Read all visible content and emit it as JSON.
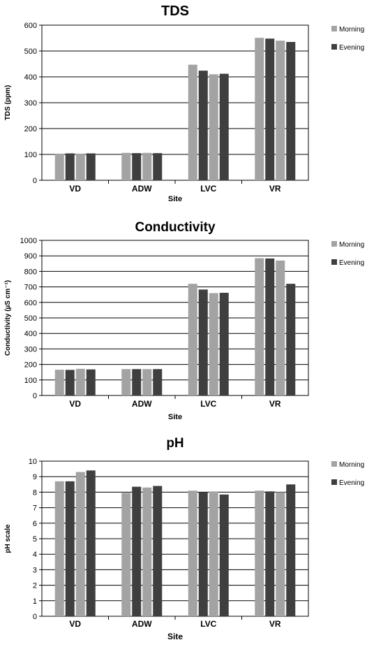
{
  "colors": {
    "morning": "#a3a3a3",
    "evening": "#3f3f3f",
    "axis": "#000000",
    "grid": "#000000",
    "text": "#000000"
  },
  "chart_data": [
    {
      "type": "bar",
      "title": "TDS",
      "xlabel": "Site",
      "ylabel": "TDS (ppm)",
      "ylim": [
        0,
        600
      ],
      "yticks": [
        "0",
        "100",
        "200",
        "300",
        "400",
        "500",
        "600"
      ],
      "grid": true,
      "legend": "right",
      "categories": [
        "VD",
        "ADW",
        "LVC",
        "VR"
      ],
      "series": [
        {
          "name": "Morning",
          "color_key": "morning"
        },
        {
          "name": "Evening",
          "color_key": "evening"
        }
      ],
      "bars": [
        [
          103,
          104,
          103,
          104
        ],
        [
          106,
          105,
          106,
          105
        ],
        [
          447,
          424,
          410,
          412
        ],
        [
          551,
          548,
          540,
          535
        ]
      ],
      "bar_series": [
        0,
        1,
        0,
        1
      ]
    },
    {
      "type": "bar",
      "title": "Conductivity",
      "xlabel": "Site",
      "ylabel": "Conductivity (µS cm⁻¹)",
      "ylim": [
        0,
        1000
      ],
      "yticks": [
        "0",
        "100",
        "200",
        "300",
        "400",
        "500",
        "600",
        "700",
        "800",
        "900",
        "1000"
      ],
      "grid": true,
      "legend": "right",
      "categories": [
        "VD",
        "ADW",
        "LVC",
        "VR"
      ],
      "series": [
        {
          "name": "Morning",
          "color_key": "morning"
        },
        {
          "name": "Evening",
          "color_key": "evening"
        }
      ],
      "bars": [
        [
          166,
          165,
          172,
          168
        ],
        [
          170,
          170,
          170,
          170
        ],
        [
          720,
          683,
          660,
          662
        ],
        [
          885,
          883,
          870,
          720
        ]
      ],
      "bar_series": [
        0,
        1,
        0,
        1
      ]
    },
    {
      "type": "bar",
      "title": "pH",
      "xlabel": "Site",
      "ylabel": "pH scale",
      "ylim": [
        0,
        10
      ],
      "yticks": [
        "0",
        "1",
        "2",
        "3",
        "4",
        "5",
        "6",
        "7",
        "8",
        "9",
        "10"
      ],
      "grid": true,
      "legend": "right",
      "categories": [
        "VD",
        "ADW",
        "LVC",
        "VR"
      ],
      "series": [
        {
          "name": "Morning",
          "color_key": "morning"
        },
        {
          "name": "Evening",
          "color_key": "evening"
        }
      ],
      "bars": [
        [
          8.7,
          8.7,
          9.3,
          9.4
        ],
        [
          7.95,
          8.35,
          8.3,
          8.4
        ],
        [
          8.1,
          8.0,
          8.05,
          7.85
        ],
        [
          8.1,
          8.05,
          8.0,
          8.5
        ]
      ],
      "bar_series": [
        0,
        1,
        0,
        1
      ]
    }
  ]
}
